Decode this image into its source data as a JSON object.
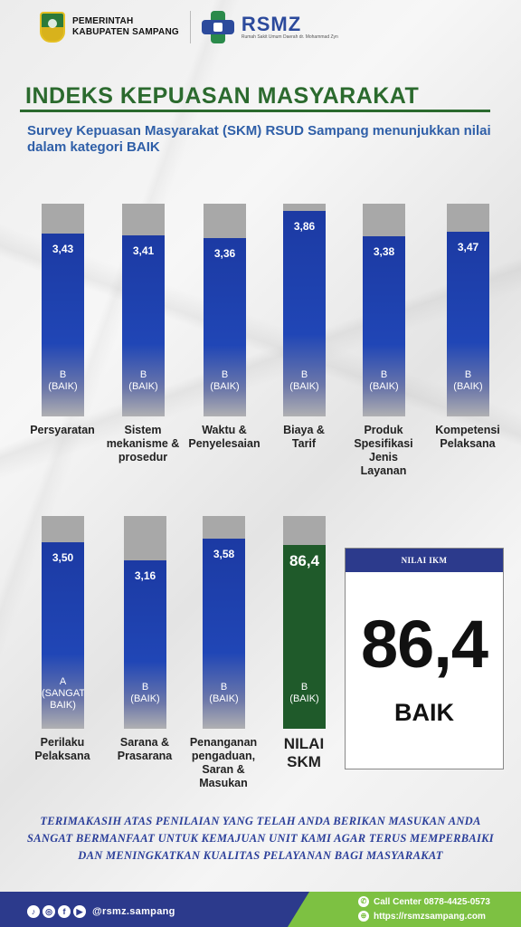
{
  "header": {
    "gov_line1": "PEMERINTAH",
    "gov_line2": "KABUPATEN SAMPANG",
    "hospital_logo_text": "RSMZ",
    "hospital_logo_sub": "Rumah Sakit Umum Daerah dr. Mohammad Zyn"
  },
  "title": "INDEKS KEPUASAN MASYARAKAT",
  "subtitle": "Survey Kepuasan Masyarakat (SKM) RSUD Sampang menunjukkan nilai dalam kategori BAIK",
  "colors": {
    "bar_blue": "#1c3aa3",
    "bar_green": "#1f5a2a",
    "bar_track": "#a8a8a8",
    "title_green": "#2b6a2e",
    "footer_blue": "#2c3a8c",
    "footer_green": "#7dc142"
  },
  "chart_data": {
    "type": "bar",
    "title": "INDEKS KEPUASAN MASYARAKAT",
    "xlabel": "",
    "ylabel": "",
    "ylim": [
      0,
      4
    ],
    "grid": false,
    "categories": [
      "Persyaratan",
      "Sistem mekanisme & prosedur",
      "Waktu & Penyelesaian",
      "Biaya & Tarif",
      "Produk Spesifikasi Jenis Layanan",
      "Kompetensi Pelaksana",
      "Perilaku Pelaksana",
      "Sarana & Prasarana",
      "Penanganan pengaduan, Saran & Masukan"
    ],
    "values": [
      3.43,
      3.41,
      3.36,
      3.86,
      3.38,
      3.47,
      3.5,
      3.16,
      3.58
    ],
    "value_labels": [
      "3,43",
      "3,41",
      "3,36",
      "3,86",
      "3,38",
      "3,47",
      "3,50",
      "3,16",
      "3,58"
    ],
    "grades": [
      "B\n(BAIK)",
      "B\n(BAIK)",
      "B\n(BAIK)",
      "B\n(BAIK)",
      "B\n(BAIK)",
      "B\n(BAIK)",
      "A\n(SANGAT\nBAIK)",
      "B\n(BAIK)",
      "B\n(BAIK)"
    ],
    "labels": [
      "Persyaratan",
      "Sistem\nmekanisme &\nprosedur",
      "Waktu &\nPenyelesaian",
      "Biaya &\nTarif",
      "Produk\nSpesifikasi\nJenis\nLayanan",
      "Kompetensi\nPelaksana",
      "Perilaku\nPelaksana",
      "Sarana &\nPrasarana",
      "Penanganan\npengaduan,\nSaran &\nMasukan"
    ],
    "summary_bar": {
      "label": "NILAI\nSKM",
      "value": 86.4,
      "value_label": "86,4",
      "max": 100,
      "grade": "B\n(BAIK)"
    }
  },
  "ikm_box": {
    "header": "NILAI IKM",
    "value": "86,4",
    "category": "BAIK"
  },
  "thanks_message": "TERIMAKASIH ATAS PENILAIAN YANG TELAH ANDA BERIKAN MASUKAN ANDA SANGAT BERMANFAAT UNTUK KEMAJUAN UNIT KAMI AGAR TERUS MEMPERBAIKI DAN MENINGKATKAN KUALITAS PELAYANAN BAGI MASYARAKAT",
  "footer": {
    "social_icons": [
      "tiktok-icon",
      "instagram-icon",
      "facebook-icon",
      "youtube-icon"
    ],
    "handle": "@rsmz.sampang",
    "call_center": "Call Center 0878-4425-0573",
    "website": "https://rsmzsampang.com"
  }
}
